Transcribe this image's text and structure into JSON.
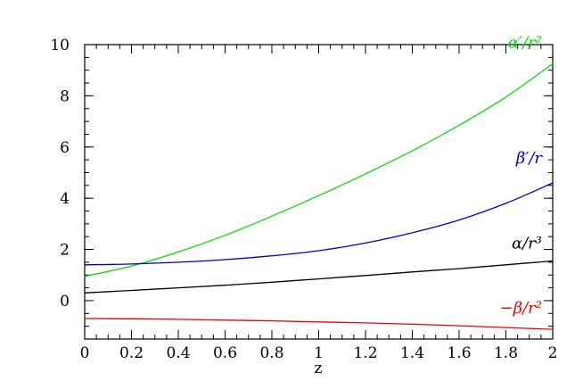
{
  "chart_data": {
    "type": "line",
    "title": "",
    "xlabel": "z",
    "ylabel": "",
    "xlim": [
      0,
      2
    ],
    "ylim": [
      -1.5,
      10
    ],
    "x_ticks": [
      0,
      0.2,
      0.4,
      0.6,
      0.8,
      1,
      1.2,
      1.4,
      1.6,
      1.8,
      2
    ],
    "x_tick_labels": [
      "0",
      "0.2",
      "0.4",
      "0.6",
      "0.8",
      "1",
      "1.2",
      "1.4",
      "1.6",
      "1.8",
      "2"
    ],
    "y_ticks": [
      0,
      2,
      4,
      6,
      8,
      10
    ],
    "y_tick_labels": [
      "0",
      "2",
      "4",
      "6",
      "8",
      "10"
    ],
    "grid": false,
    "legend": "inline labels at right end of each curve",
    "x": [
      0,
      0.2,
      0.4,
      0.6,
      0.8,
      1.0,
      1.2,
      1.4,
      1.6,
      1.8,
      2.0
    ],
    "series": [
      {
        "name": "α′/r²",
        "color": "#00e000",
        "values": [
          0.95,
          1.35,
          1.9,
          2.55,
          3.3,
          4.1,
          4.95,
          5.85,
          6.85,
          7.95,
          9.25
        ]
      },
      {
        "name": "β′/r",
        "color": "#0000cc",
        "values": [
          1.4,
          1.43,
          1.5,
          1.6,
          1.75,
          1.95,
          2.25,
          2.65,
          3.15,
          3.8,
          4.6
        ]
      },
      {
        "name": "α/r³",
        "color": "#000000",
        "values": [
          0.3,
          0.4,
          0.5,
          0.6,
          0.72,
          0.85,
          0.98,
          1.12,
          1.25,
          1.4,
          1.55
        ]
      },
      {
        "name": "−β/r²",
        "color": "#ee0000",
        "values": [
          -0.7,
          -0.71,
          -0.73,
          -0.76,
          -0.79,
          -0.83,
          -0.87,
          -0.92,
          -0.98,
          -1.05,
          -1.12
        ]
      }
    ]
  }
}
